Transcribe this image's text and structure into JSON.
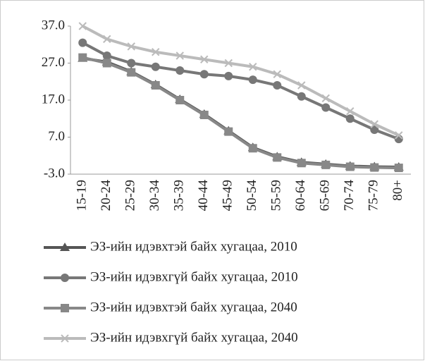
{
  "chart_data": {
    "type": "line",
    "categories": [
      "15-19",
      "20-24",
      "25-29",
      "30-34",
      "35-39",
      "40-44",
      "45-49",
      "50-54",
      "55-59",
      "60-64",
      "65-69",
      "70-74",
      "75-79",
      "80+"
    ],
    "series": [
      {
        "name": "ЭЗ-ийн идэвхтэй байх хугацаа, 2010",
        "color": "#555555",
        "marker": "triangle",
        "values": [
          28.3,
          27.3,
          24.7,
          21.2,
          17.2,
          13.2,
          8.7,
          4.2,
          1.7,
          0.2,
          -0.3,
          -0.8,
          -1.0,
          -1.1
        ]
      },
      {
        "name": "ЭЗ-ийн идэвхгүй байх хугацаа, 2010",
        "color": "#777777",
        "marker": "circle",
        "values": [
          32.5,
          29,
          27,
          26,
          25,
          24,
          23.5,
          22.5,
          21,
          18,
          15,
          12,
          9,
          6.5
        ]
      },
      {
        "name": "ЭЗ-ийн идэвхтэй байх хугацаа, 2040",
        "color": "#888888",
        "marker": "square",
        "values": [
          28.5,
          27,
          24.5,
          21,
          17,
          13,
          8.5,
          4,
          1.5,
          0,
          -0.5,
          -1,
          -1.2,
          -1.3
        ]
      },
      {
        "name": "ЭЗ-ийн идэвхгүй байх хугацаа, 2040",
        "color": "#bbbbbb",
        "marker": "cross",
        "values": [
          37,
          33.5,
          31.5,
          30,
          29,
          28,
          27,
          26,
          24,
          21,
          17.5,
          14,
          10.5,
          7.5
        ]
      }
    ],
    "ylim": [
      -3,
      37
    ],
    "yticks": [
      {
        "value": -3,
        "label": "-3.0"
      },
      {
        "value": 7,
        "label": "7.0"
      },
      {
        "value": 17,
        "label": "17.0"
      },
      {
        "value": 27,
        "label": "27.0"
      },
      {
        "value": 37,
        "label": "37.0"
      }
    ],
    "legend": "bottom"
  }
}
